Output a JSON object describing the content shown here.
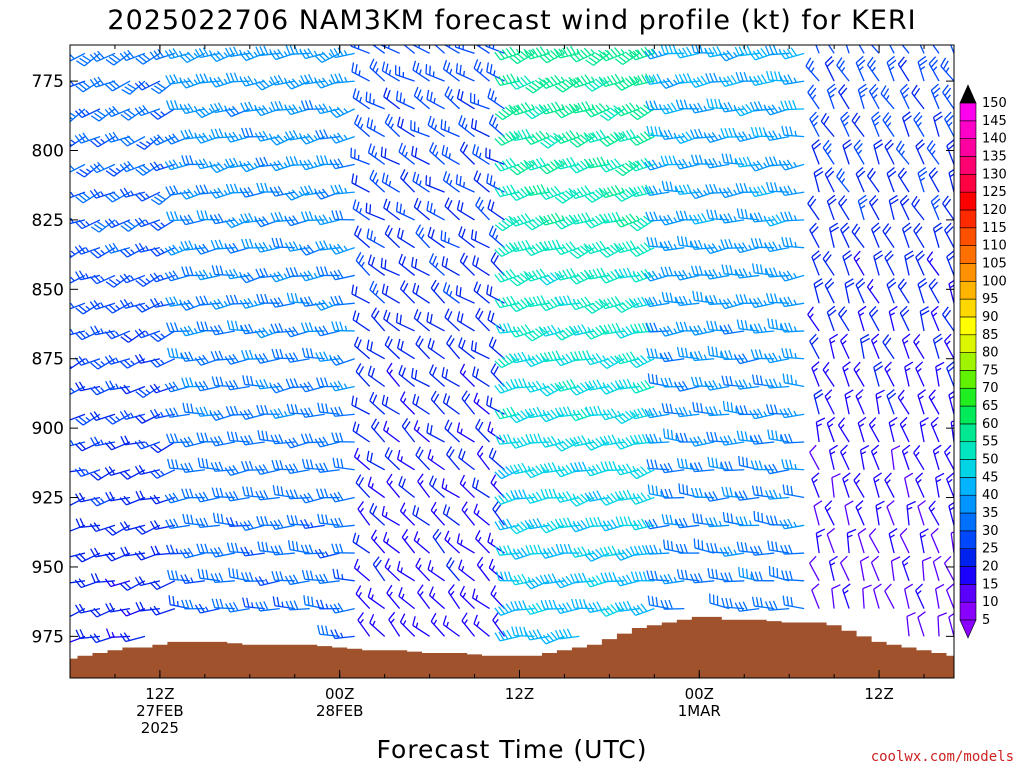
{
  "chart_data": {
    "type": "wind-profile",
    "title": "2025022706 NAM3KM forecast wind profile (kt) for KERI",
    "xlabel": "Forecast Time (UTC)",
    "credit": "coolwx.com/models",
    "y_ticks": [
      "775",
      "800",
      "825",
      "850",
      "875",
      "900",
      "925",
      "950",
      "975"
    ],
    "y_tick_values": [
      775,
      800,
      825,
      850,
      875,
      900,
      925,
      950,
      975
    ],
    "ylim": [
      990,
      762
    ],
    "x_range_hours": [
      0,
      54
    ],
    "x_ticks": [
      {
        "hour": 6,
        "lines": [
          "12Z",
          "27FEB",
          "2025"
        ]
      },
      {
        "hour": 18,
        "lines": [
          "00Z",
          "28FEB"
        ]
      },
      {
        "hour": 30,
        "lines": [
          "12Z"
        ]
      },
      {
        "hour": 42,
        "lines": [
          "00Z",
          "1MAR"
        ]
      },
      {
        "hour": 54,
        "lines": [
          "12Z"
        ]
      }
    ],
    "colorbar": {
      "levels": [
        5,
        10,
        15,
        20,
        25,
        30,
        35,
        40,
        45,
        50,
        55,
        60,
        65,
        70,
        75,
        80,
        85,
        90,
        95,
        100,
        105,
        110,
        115,
        120,
        125,
        130,
        135,
        140,
        145,
        150
      ],
      "labels": [
        "5",
        "10",
        "15",
        "20",
        "25",
        "30",
        "35",
        "40",
        "45",
        "50",
        "55",
        "60",
        "65",
        "70",
        "75",
        "80",
        "85",
        "90",
        "95",
        "100",
        "105",
        "110",
        "115",
        "120",
        "125",
        "130",
        "135",
        "140",
        "145",
        "150"
      ],
      "colors": [
        "#8a00ff",
        "#5a00ff",
        "#1a00ff",
        "#0022ee",
        "#0048ff",
        "#0070ff",
        "#0094ff",
        "#00b4ff",
        "#00d4e6",
        "#00e6c0",
        "#00e890",
        "#00ea5a",
        "#20ee20",
        "#60f000",
        "#a0f400",
        "#dcf600",
        "#ffff00",
        "#ffd800",
        "#ffb400",
        "#ff9000",
        "#ff7000",
        "#ff5000",
        "#ff2a00",
        "#ff0000",
        "#ff0040",
        "#ff0070",
        "#ff00a0",
        "#ff00c8",
        "#ff00ee",
        "#000000"
      ]
    },
    "terrain_color": "#a0522d",
    "surface_pressure_hpa": [
      [
        0.0,
        983
      ],
      [
        1.0,
        982
      ],
      [
        2.0,
        981
      ],
      [
        3.0,
        980
      ],
      [
        4.0,
        979
      ],
      [
        5.0,
        979
      ],
      [
        6.0,
        978
      ],
      [
        7.0,
        977
      ],
      [
        8.0,
        977
      ],
      [
        10.0,
        977
      ],
      [
        12.0,
        978
      ],
      [
        14.0,
        978
      ],
      [
        16.0,
        978
      ],
      [
        18.0,
        979
      ],
      [
        20.0,
        980
      ],
      [
        22.0,
        980
      ],
      [
        24.0,
        981
      ],
      [
        26.0,
        981
      ],
      [
        28.0,
        982
      ],
      [
        30.0,
        982
      ],
      [
        31.0,
        982
      ],
      [
        32.0,
        981
      ],
      [
        33.0,
        980
      ],
      [
        34.0,
        979
      ],
      [
        35.0,
        978
      ],
      [
        36.0,
        976
      ],
      [
        37.0,
        974
      ],
      [
        38.0,
        972
      ],
      [
        39.0,
        971
      ],
      [
        40.0,
        970
      ],
      [
        41.0,
        969
      ],
      [
        42.0,
        968
      ],
      [
        43.0,
        968
      ],
      [
        44.0,
        969
      ],
      [
        46.0,
        969
      ],
      [
        48.0,
        970
      ],
      [
        50.0,
        970
      ],
      [
        51.0,
        971
      ],
      [
        52.0,
        973
      ],
      [
        53.0,
        975
      ],
      [
        54.0,
        977
      ],
      [
        55.0,
        978
      ],
      [
        56.0,
        979
      ],
      [
        57.0,
        980
      ],
      [
        58.0,
        981
      ],
      [
        59.0,
        982
      ]
    ],
    "wind_grid": {
      "hours_start": 0,
      "hours_step": 1,
      "hours_count": 60,
      "levels_start": 765,
      "levels_step": 10,
      "levels_count": 22,
      "speed_regimes_kt": [
        {
          "hours": [
            0,
            8
          ],
          "speed_upper": 30,
          "speed_lower": 18,
          "dir_deg": 240
        },
        {
          "hours": [
            8,
            20
          ],
          "speed_upper": 35,
          "speed_lower": 28,
          "dir_deg": 255
        },
        {
          "hours": [
            20,
            30
          ],
          "speed_upper": 25,
          "speed_lower": 15,
          "dir_deg": 300
        },
        {
          "hours": [
            30,
            40
          ],
          "speed_upper": 55,
          "speed_lower": 40,
          "dir_deg": 245
        },
        {
          "hours": [
            40,
            50
          ],
          "speed_upper": 38,
          "speed_lower": 30,
          "dir_deg": 260
        },
        {
          "hours": [
            50,
            60
          ],
          "speed_upper": 25,
          "speed_lower": 10,
          "dir_deg": 330
        }
      ]
    }
  }
}
